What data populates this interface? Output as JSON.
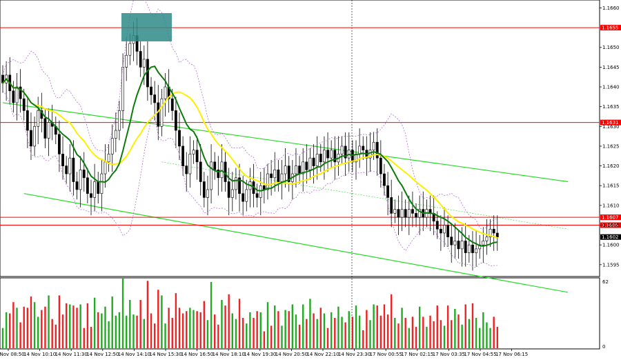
{
  "chart_data": {
    "type": "candlestick",
    "instrument_hint": "EURUSD",
    "y_axis": {
      "ticks": [
        "1.1595",
        "1.1600",
        "1.1605",
        "1.1610",
        "1.1615",
        "1.1620",
        "1.1625",
        "1.1630",
        "1.1635",
        "1.1640",
        "1.1645",
        "1.1650",
        "1.1660"
      ],
      "range": [
        1.1592,
        1.1662
      ]
    },
    "x_axis": {
      "ticks": [
        "14 Nov 08:50",
        "14 Nov 10:10",
        "14 Nov 11:30",
        "14 Nov 12:50",
        "14 Nov 14:10",
        "14 Nov 15:30",
        "14 Nov 16:50",
        "14 Nov 18:10",
        "14 Nov 19:30",
        "14 Nov 20:50",
        "14 Nov 22:10",
        "14 Nov 23:30",
        "17 Nov 00:55",
        "17 Nov 02:15",
        "17 Nov 03:35",
        "17 Nov 04:55",
        "17 Nov 06:15"
      ]
    },
    "price_levels": [
      {
        "value": 1.1655,
        "label": "1.1655",
        "color": "#ff0000"
      },
      {
        "value": 1.1631,
        "label": "1.1631",
        "color": "#ff0000"
      },
      {
        "value": 1.1607,
        "label": "1.1607",
        "color": "#ff0000"
      },
      {
        "value": 1.1605,
        "label": "1.1605",
        "color": "#ff0000"
      },
      {
        "value": 1.1602,
        "label": "1.1602",
        "color": "#000000"
      }
    ],
    "channel": {
      "upper": [
        {
          "i": 0,
          "p": 1.1636
        },
        {
          "i": 160,
          "p": 1.1616
        }
      ],
      "lower": [
        {
          "i": 6,
          "p": 1.1613
        },
        {
          "i": 160,
          "p": 1.1588
        }
      ],
      "middle": [
        {
          "i": 45,
          "p": 1.1621
        },
        {
          "i": 160,
          "p": 1.1604
        }
      ]
    },
    "close_series": [
      1.1641,
      1.1643,
      1.1639,
      1.1636,
      1.164,
      1.1637,
      1.1634,
      1.1629,
      1.1625,
      1.163,
      1.1634,
      1.1632,
      1.1627,
      1.1631,
      1.163,
      1.1628,
      1.1623,
      1.162,
      1.1618,
      1.1622,
      1.1616,
      1.1614,
      1.1619,
      1.1617,
      1.1613,
      1.1612,
      1.1616,
      1.1613,
      1.1618,
      1.1621,
      1.1623,
      1.1627,
      1.1629,
      1.1634,
      1.1645,
      1.1648,
      1.1651,
      1.1653,
      1.1649,
      1.1645,
      1.1647,
      1.164,
      1.1638,
      1.1636,
      1.163,
      1.1637,
      1.164,
      1.1637,
      1.1634,
      1.1629,
      1.1625,
      1.162,
      1.1618,
      1.1623,
      1.1624,
      1.1621,
      1.1616,
      1.1612,
      1.1614,
      1.1621,
      1.1619,
      1.1617,
      1.1621,
      1.1616,
      1.1612,
      1.1614,
      1.1617,
      1.1613,
      1.1611,
      1.1614,
      1.1616,
      1.1613,
      1.1612,
      1.1615,
      1.1614,
      1.1618,
      1.1617,
      1.1619,
      1.1616,
      1.1618,
      1.162,
      1.1616,
      1.1618,
      1.162,
      1.1618,
      1.1621,
      1.1619,
      1.1622,
      1.162,
      1.1623,
      1.1621,
      1.1624,
      1.1622,
      1.1624,
      1.1621,
      1.1623,
      1.1625,
      1.1622,
      1.1624,
      1.1621,
      1.1623,
      1.1625,
      1.1624,
      1.1622,
      1.1624,
      1.1626,
      1.1622,
      1.1618,
      1.1615,
      1.1612,
      1.1608,
      1.1609,
      1.1607,
      1.1609,
      1.1607,
      1.1609,
      1.1608,
      1.1607,
      1.1609,
      1.1607,
      1.1609,
      1.1608,
      1.1606,
      1.1604,
      1.1603,
      1.1605,
      1.1602,
      1.16,
      1.1601,
      1.1599,
      1.1601,
      1.1598,
      1.16,
      1.1598,
      1.1599,
      1.16,
      1.1601,
      1.1602,
      1.1604,
      1.1603,
      1.1602
    ],
    "volume_axis": {
      "ticks": [
        "62",
        "0"
      ],
      "max": 62
    }
  }
}
